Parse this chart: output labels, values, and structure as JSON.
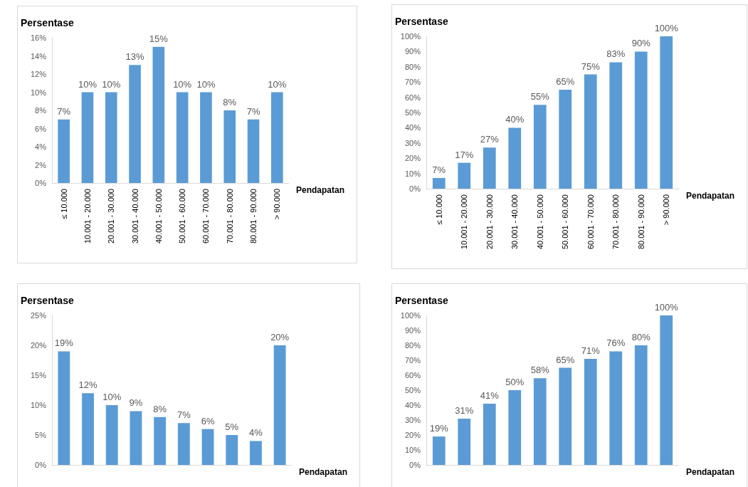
{
  "chart_data": [
    {
      "type": "bar",
      "ylabel": "Persentase",
      "xlabel": "Pendapatan",
      "color": "#5b9bd5",
      "categories": [
        "≤ 10.000",
        "10.001 - 20.000",
        "20.001 - 30.000",
        "30.001 - 40.000",
        "40.001 - 50.000",
        "50.001 - 60.000",
        "60.001 - 70.000",
        "70.001 - 80.000",
        "80.001 - 90.000",
        "> 90.000"
      ],
      "values": [
        7,
        10,
        10,
        13,
        15,
        10,
        10,
        8,
        7,
        10
      ],
      "value_labels": [
        "7%",
        "10%",
        "10%",
        "13%",
        "15%",
        "10%",
        "10%",
        "8%",
        "7%",
        "10%"
      ],
      "ylim": [
        0,
        16
      ],
      "yticks": [
        {
          "value": 0,
          "label": "0%"
        },
        {
          "value": 2,
          "label": "2%"
        },
        {
          "value": 4,
          "label": "4%"
        },
        {
          "value": 6,
          "label": "6%"
        },
        {
          "value": 8,
          "label": "8%"
        },
        {
          "value": 10,
          "label": "10%"
        },
        {
          "value": 12,
          "label": "12%"
        },
        {
          "value": 14,
          "label": "14%"
        },
        {
          "value": 16,
          "label": "16%"
        }
      ]
    },
    {
      "type": "bar",
      "ylabel": "Persentase",
      "xlabel": "Pendapatan",
      "color": "#5b9bd5",
      "categories": [
        "≤ 10.000",
        "10.001 - 20.000",
        "20.001 - 30.000",
        "30.001 - 40.000",
        "40.001 - 50.000",
        "50.001 - 60.000",
        "60.001 - 70.000",
        "70.001 - 80.000",
        "80.001 - 90.000",
        "> 90.000"
      ],
      "values": [
        7,
        17,
        27,
        40,
        55,
        65,
        75,
        83,
        90,
        100
      ],
      "value_labels": [
        "7%",
        "17%",
        "27%",
        "40%",
        "55%",
        "65%",
        "75%",
        "83%",
        "90%",
        "100%"
      ],
      "ylim": [
        0,
        100
      ],
      "yticks": [
        {
          "value": 0,
          "label": "0%"
        },
        {
          "value": 10,
          "label": "10%"
        },
        {
          "value": 20,
          "label": "20%"
        },
        {
          "value": 30,
          "label": "30%"
        },
        {
          "value": 40,
          "label": "40%"
        },
        {
          "value": 50,
          "label": "50%"
        },
        {
          "value": 60,
          "label": "60%"
        },
        {
          "value": 70,
          "label": "70%"
        },
        {
          "value": 80,
          "label": "80%"
        },
        {
          "value": 90,
          "label": "90%"
        },
        {
          "value": 100,
          "label": "100%"
        }
      ]
    },
    {
      "type": "bar",
      "ylabel": "Persentase",
      "xlabel": "Pendapatan",
      "color": "#5b9bd5",
      "categories": [
        null,
        null,
        null,
        null,
        null,
        null,
        null,
        null,
        null,
        null
      ],
      "values": [
        19,
        12,
        10,
        9,
        8,
        7,
        6,
        5,
        4,
        20
      ],
      "value_labels": [
        "19%",
        "12%",
        "10%",
        "9%",
        "8%",
        "7%",
        "6%",
        "5%",
        "4%",
        "20%"
      ],
      "ylim": [
        0,
        25
      ],
      "yticks": [
        {
          "value": 0,
          "label": "0%"
        },
        {
          "value": 5,
          "label": "5%"
        },
        {
          "value": 10,
          "label": "10%"
        },
        {
          "value": 15,
          "label": "15%"
        },
        {
          "value": 20,
          "label": "20%"
        },
        {
          "value": 25,
          "label": "25%"
        }
      ]
    },
    {
      "type": "bar",
      "ylabel": "Persentase",
      "xlabel": "Pendapatan",
      "color": "#5b9bd5",
      "categories": [
        null,
        null,
        null,
        null,
        null,
        null,
        null,
        null,
        null,
        null
      ],
      "values": [
        19,
        31,
        41,
        50,
        58,
        65,
        71,
        76,
        80,
        100
      ],
      "value_labels": [
        "19%",
        "31%",
        "41%",
        "50%",
        "58%",
        "65%",
        "71%",
        "76%",
        "80%",
        "100%"
      ],
      "ylim": [
        0,
        100
      ],
      "yticks": [
        {
          "value": 0,
          "label": "0%"
        },
        {
          "value": 10,
          "label": "10%"
        },
        {
          "value": 20,
          "label": "20%"
        },
        {
          "value": 30,
          "label": "30%"
        },
        {
          "value": 40,
          "label": "40%"
        },
        {
          "value": 50,
          "label": "50%"
        },
        {
          "value": 60,
          "label": "60%"
        },
        {
          "value": 70,
          "label": "70%"
        },
        {
          "value": 80,
          "label": "80%"
        },
        {
          "value": 90,
          "label": "90%"
        },
        {
          "value": 100,
          "label": "100%"
        }
      ]
    }
  ]
}
